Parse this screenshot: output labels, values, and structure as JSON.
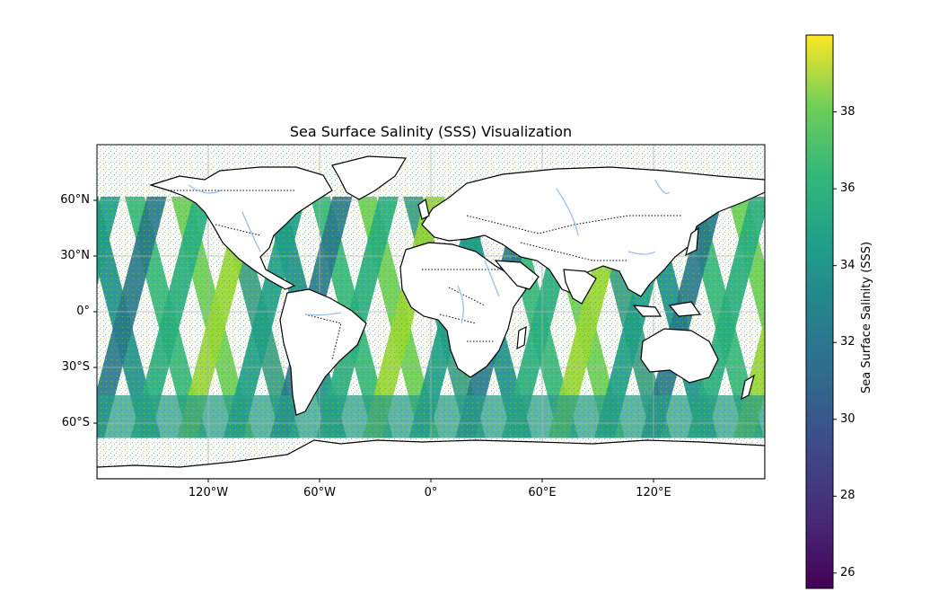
{
  "chart_data": {
    "type": "heatmap",
    "title": "Sea Surface Salinity (SSS) Visualization",
    "projection": "PlateCarree",
    "x_ticks": [
      "120°W",
      "60°W",
      "0°",
      "60°E",
      "120°E"
    ],
    "x_tick_values": [
      -120,
      -60,
      0,
      60,
      120
    ],
    "y_ticks": [
      "60°N",
      "30°N",
      "0°",
      "30°S",
      "60°S"
    ],
    "y_tick_values": [
      60,
      30,
      0,
      -30,
      -60
    ],
    "xlim": [
      -180,
      180
    ],
    "ylim": [
      -90,
      90
    ],
    "grid": true,
    "colorbar": {
      "label": "Sea Surface Salinity (SSS)",
      "colormap": "viridis",
      "ticks": [
        "26",
        "28",
        "30",
        "32",
        "34",
        "36",
        "38"
      ],
      "tick_values": [
        26,
        28,
        30,
        32,
        34,
        36,
        38
      ],
      "range": [
        25.6,
        40.0
      ],
      "orientation": "vertical",
      "placement": "right"
    },
    "features": [
      "coastlines",
      "country borders (dotted)",
      "rivers"
    ],
    "data_note_swaths": true
  },
  "colors": {
    "coastline": "#000000",
    "rivers": "#9cbfe6",
    "grid": "#b0b0b0"
  }
}
